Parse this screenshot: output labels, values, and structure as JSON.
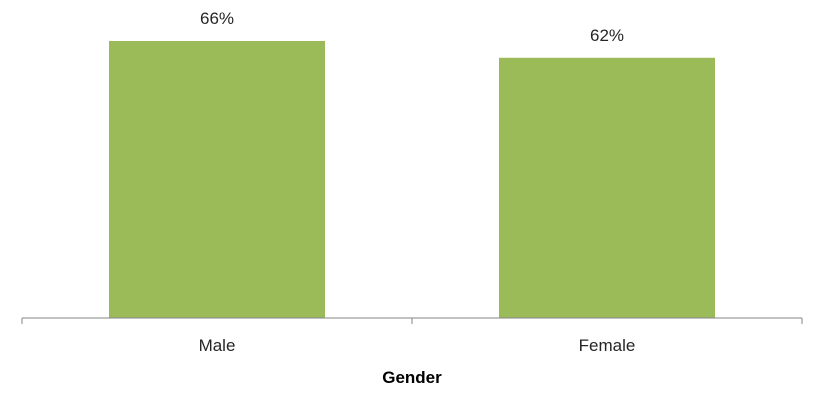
{
  "chart_data": {
    "type": "bar",
    "categories": [
      "Male",
      "Female"
    ],
    "values": [
      66,
      62
    ],
    "data_labels": [
      "66%",
      "62%"
    ],
    "xlabel": "Gender",
    "ylabel": "",
    "ylim": [
      0,
      70
    ],
    "grid": false,
    "legend": "none",
    "bar_color": "#9bbb59",
    "axis_color": "#868686"
  }
}
